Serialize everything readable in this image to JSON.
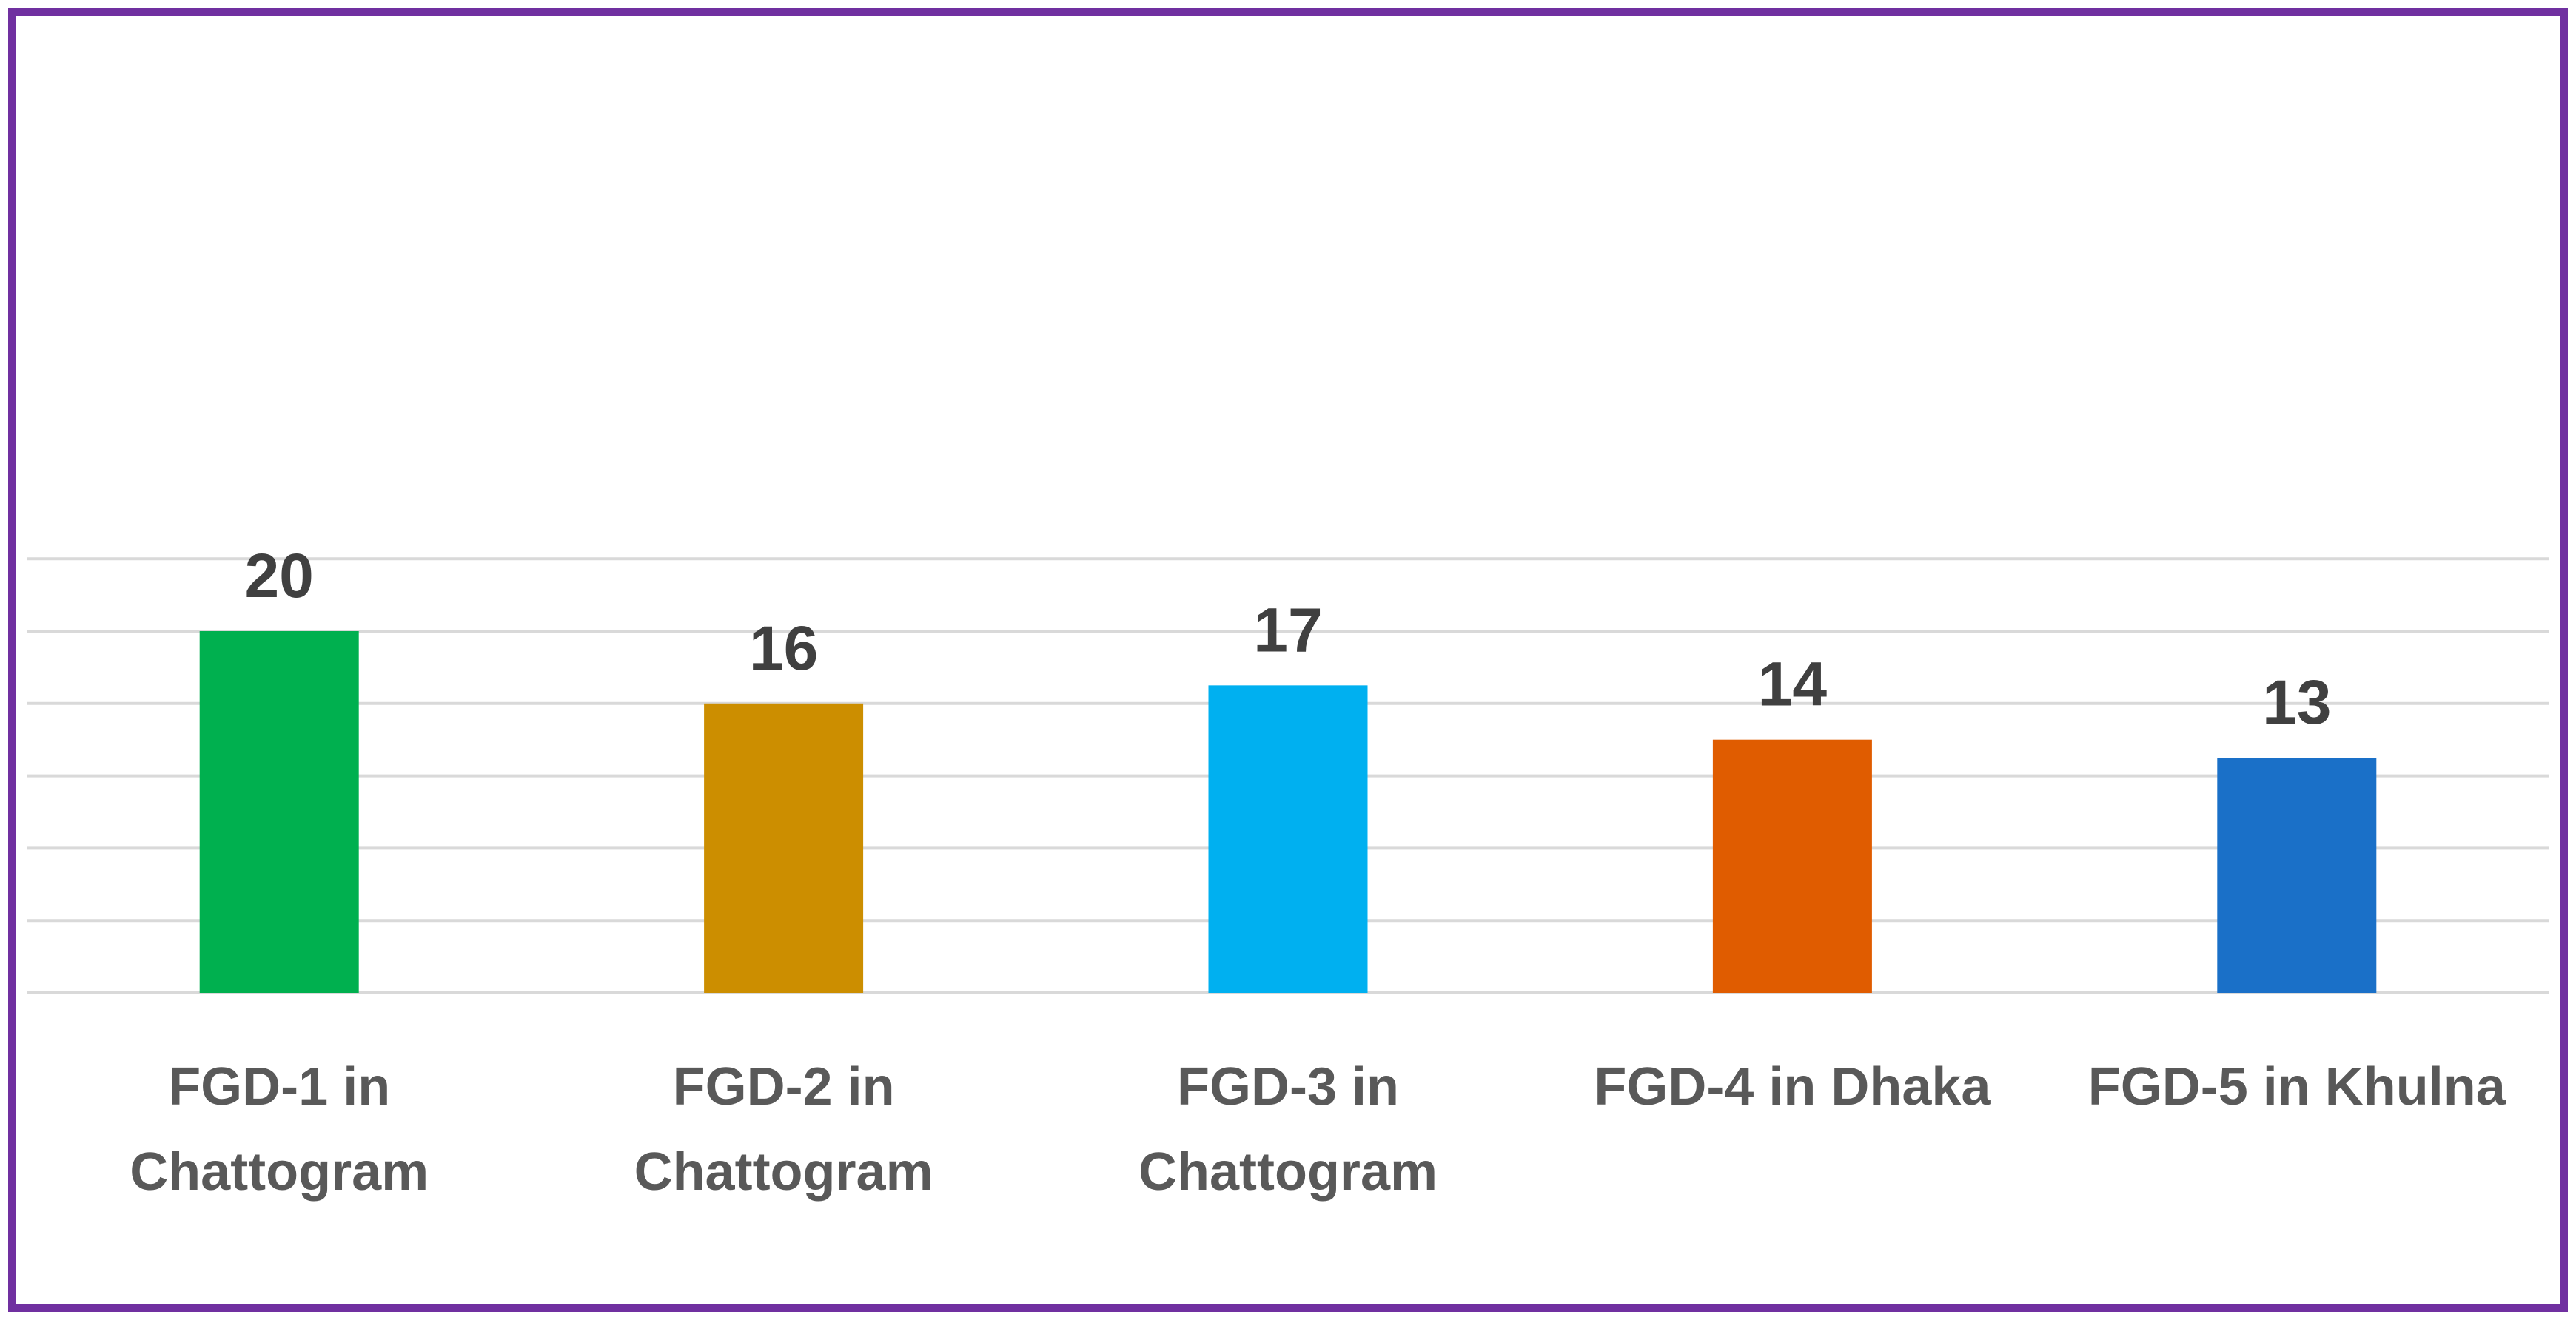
{
  "chart_data": {
    "type": "bar",
    "title": "",
    "xlabel": "",
    "ylabel": "",
    "ylim": [
      0,
      24
    ],
    "y_gridlines": [
      0,
      4,
      8,
      12,
      16,
      20,
      24
    ],
    "grid": true,
    "legend": "none",
    "frame_color": "#7030a0",
    "categories": [
      {
        "lines": [
          "FGD-1 in",
          "Chattogram"
        ]
      },
      {
        "lines": [
          "FGD-2 in",
          "Chattogram"
        ]
      },
      {
        "lines": [
          "FGD-3 in",
          "Chattogram"
        ]
      },
      {
        "lines": [
          "FGD-4 in Dhaka"
        ]
      },
      {
        "lines": [
          "FGD-5 in Khulna"
        ]
      }
    ],
    "values": [
      20,
      16,
      17,
      14,
      13
    ],
    "data_labels": [
      "20",
      "16",
      "17",
      "14",
      "13"
    ],
    "colors": [
      "#00b04f",
      "#cc8e00",
      "#00b0f0",
      "#e05c00",
      "#1a70c8"
    ]
  }
}
